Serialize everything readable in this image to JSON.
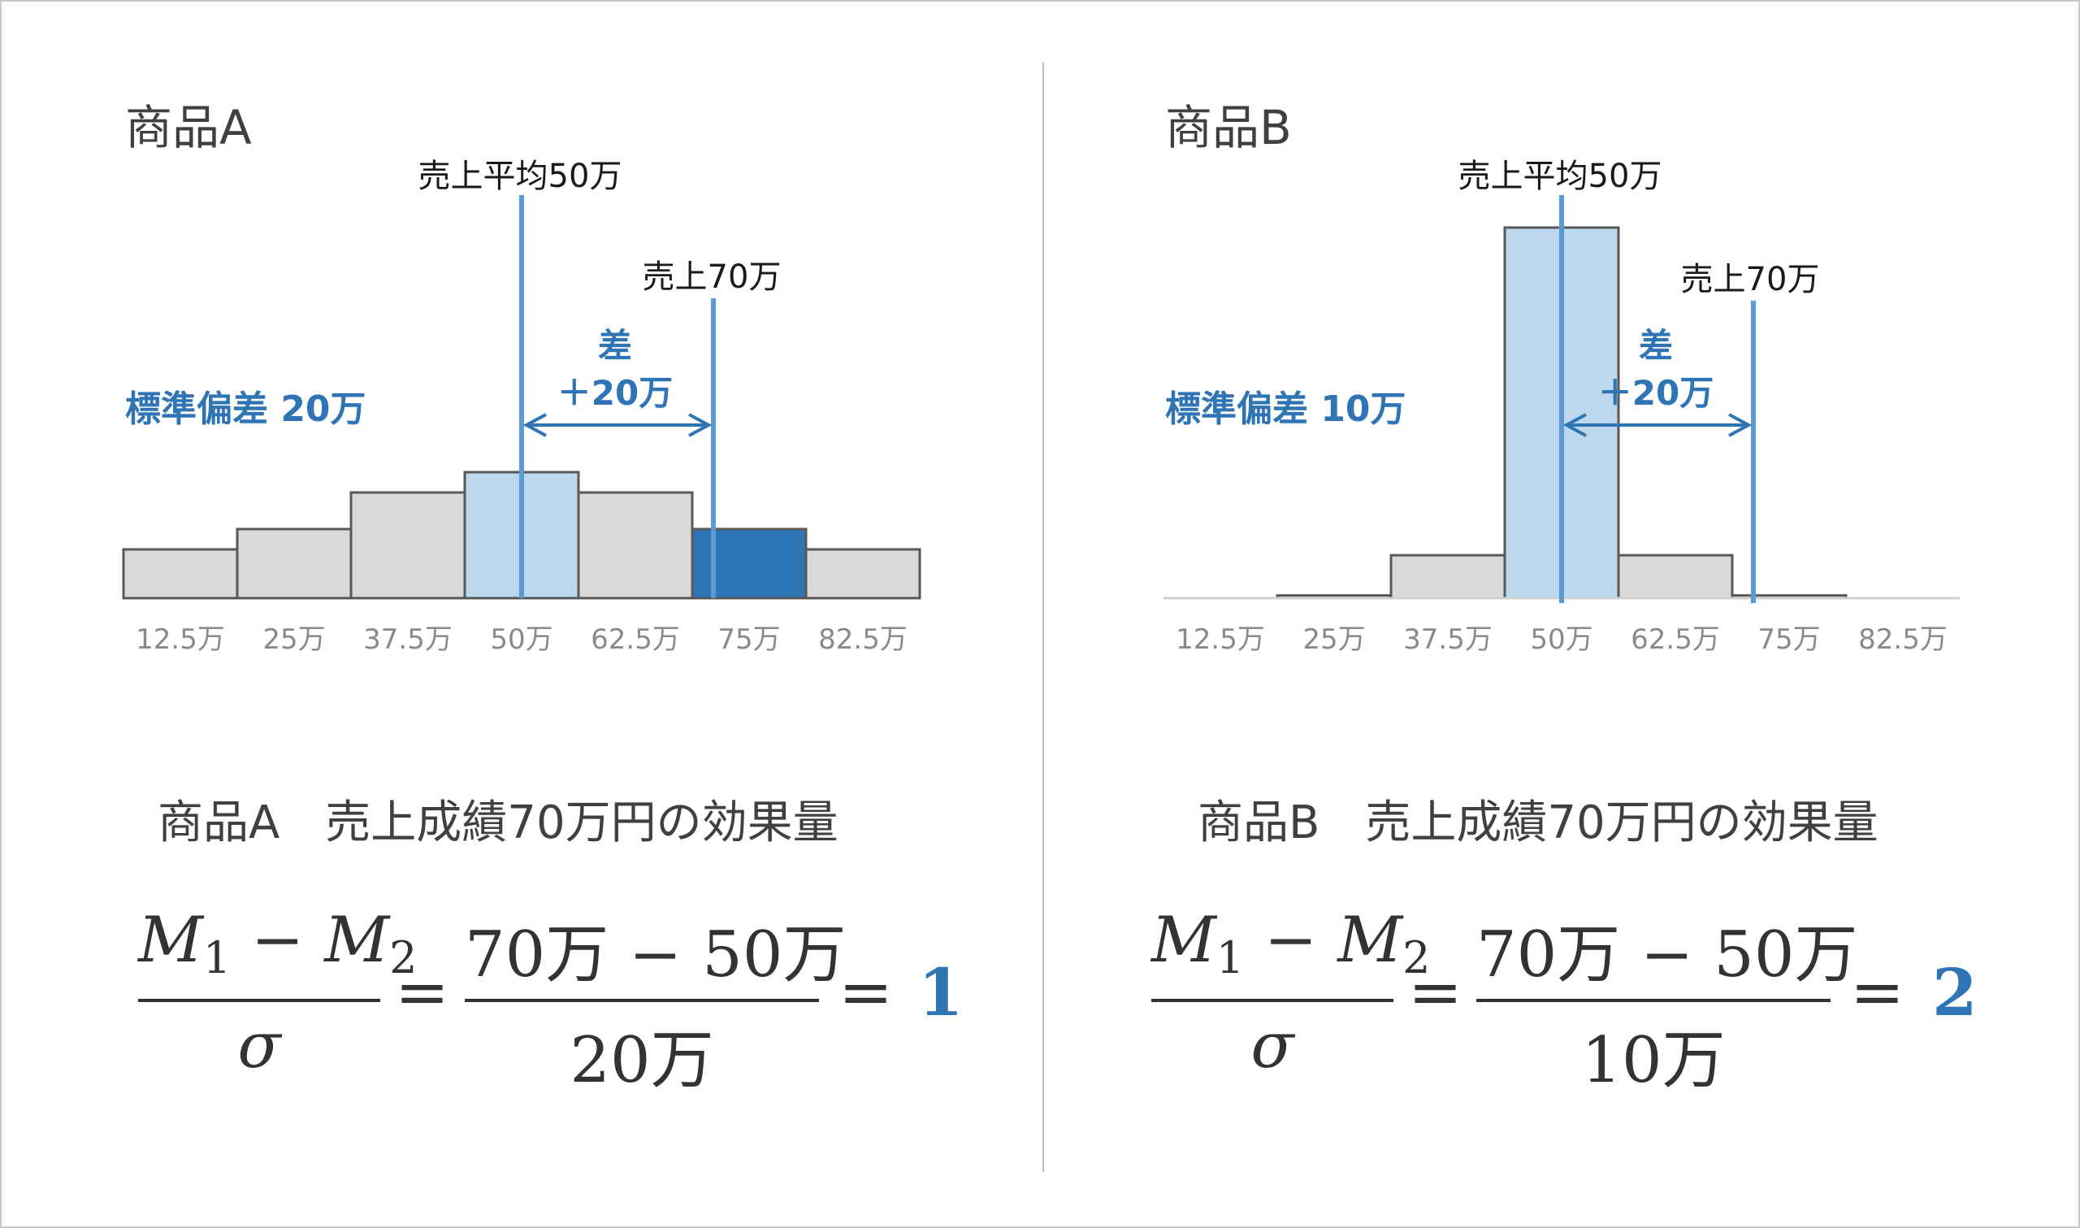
{
  "panels": [
    {
      "title": "商品A",
      "sd_label": "標準偏差 20万",
      "mean_label": "売上平均50万",
      "sales_label": "売上70万",
      "diff_label_top": "差",
      "diff_label_bottom": "＋20万",
      "effect_title": "商品A　売上成績70万円の効果量",
      "formula": {
        "lhs_num_a": "M",
        "lhs_num_a_sub": "1",
        "minus": "−",
        "lhs_num_b": "M",
        "lhs_num_b_sub": "2",
        "lhs_den": "σ",
        "eq1": "=",
        "rhs_num": "70万 − 50万",
        "rhs_den": "20万",
        "eq2": "=",
        "result": "1"
      }
    },
    {
      "title": "商品B",
      "sd_label": "標準偏差 10万",
      "mean_label": "売上平均50万",
      "sales_label": "売上70万",
      "diff_label_top": "差",
      "diff_label_bottom": "＋20万",
      "effect_title": "商品B　売上成績70万円の効果量",
      "formula": {
        "lhs_num_a": "M",
        "lhs_num_a_sub": "1",
        "minus": "−",
        "lhs_num_b": "M",
        "lhs_num_b_sub": "2",
        "lhs_den": "σ",
        "eq1": "=",
        "rhs_num": "70万 − 50万",
        "rhs_den": "10万",
        "eq2": "=",
        "result": "2"
      }
    }
  ],
  "chart_data": [
    {
      "type": "bar",
      "title": "商品A",
      "categories": [
        "12.5万",
        "25万",
        "37.5万",
        "50万",
        "62.5万",
        "75万",
        "82.5万"
      ],
      "values": [
        12,
        17,
        26,
        31,
        26,
        17,
        12
      ],
      "highlight": {
        "mean_bin": "50万",
        "sales_bin": "75万"
      },
      "mean_value": "50万",
      "sales_value": "70万",
      "colors": {
        "bar": "#d9d9d9",
        "mean_bin": "#bdd7ee",
        "sales_bin": "#2e75b6",
        "line": "#5b9bd5",
        "outline": "#595959"
      },
      "grid": false
    },
    {
      "type": "bar",
      "title": "商品B",
      "categories": [
        "12.5万",
        "25万",
        "37.5万",
        "50万",
        "62.5万",
        "75万",
        "82.5万"
      ],
      "values": [
        0,
        0.7,
        11,
        95,
        11,
        0.7,
        0
      ],
      "highlight": {
        "mean_bin": "50万"
      },
      "mean_value": "50万",
      "sales_value": "70万",
      "colors": {
        "bar": "#d9d9d9",
        "mean_bin": "#bdd7ee",
        "line": "#5b9bd5",
        "outline": "#595959"
      },
      "grid": false
    }
  ]
}
